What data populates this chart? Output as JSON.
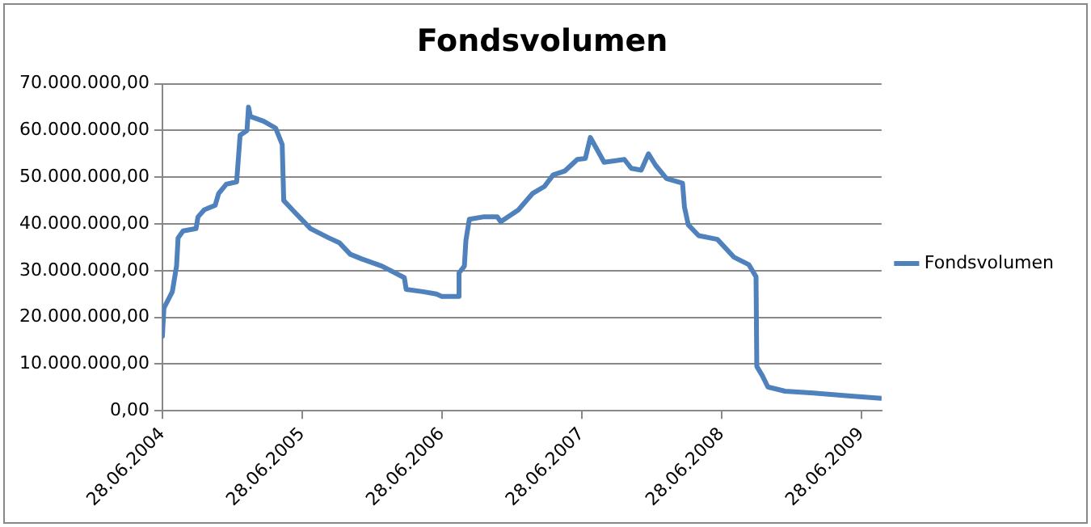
{
  "chart_data": {
    "type": "line",
    "title": "Fondsvolumen",
    "legend": "right",
    "grid": "y",
    "marker": "none",
    "line_style": "solid",
    "xlim": [
      "2004-06-28",
      "2009-08-20"
    ],
    "xticks": [
      {
        "value": "2004-06-28",
        "label": "28.06.2004"
      },
      {
        "value": "2005-06-28",
        "label": "28.06.2005"
      },
      {
        "value": "2006-06-28",
        "label": "28.06.2006"
      },
      {
        "value": "2007-06-28",
        "label": "28.06.2007"
      },
      {
        "value": "2008-06-28",
        "label": "28.06.2008"
      },
      {
        "value": "2009-06-28",
        "label": "28.06.2009"
      }
    ],
    "ylim": [
      0,
      70000000
    ],
    "yticks": [
      {
        "value": 0,
        "label": "0,00"
      },
      {
        "value": 10000000,
        "label": "10.000.000,00"
      },
      {
        "value": 20000000,
        "label": "20.000.000,00"
      },
      {
        "value": 30000000,
        "label": "30.000.000,00"
      },
      {
        "value": 40000000,
        "label": "40.000.000,00"
      },
      {
        "value": 50000000,
        "label": "50.000.000,00"
      },
      {
        "value": 60000000,
        "label": "60.000.000,00"
      },
      {
        "value": 70000000,
        "label": "70.000.000,00"
      }
    ],
    "series": [
      {
        "name": "Fondsvolumen",
        "color": "#4f81bd",
        "x": [
          "2004-06-28",
          "2004-07-02",
          "2004-07-24",
          "2004-08-04",
          "2004-08-08",
          "2004-08-21",
          "2004-09-24",
          "2004-09-29",
          "2004-10-15",
          "2004-11-13",
          "2004-11-22",
          "2004-12-12",
          "2005-01-08",
          "2005-01-17",
          "2005-02-04",
          "2005-02-08",
          "2005-02-13",
          "2005-03-19",
          "2005-04-20",
          "2005-05-07",
          "2005-05-11",
          "2005-06-03",
          "2005-07-20",
          "2005-09-06",
          "2005-10-03",
          "2005-11-01",
          "2005-12-01",
          "2006-01-22",
          "2006-03-22",
          "2006-03-27",
          "2006-05-10",
          "2006-06-14",
          "2006-06-28",
          "2006-08-08",
          "2006-08-12",
          "2006-08-26",
          "2006-08-30",
          "2006-09-08",
          "2006-10-14",
          "2006-11-20",
          "2006-11-29",
          "2007-01-14",
          "2007-02-20",
          "2007-03-23",
          "2007-04-15",
          "2007-05-15",
          "2007-06-17",
          "2007-07-08",
          "2007-07-21",
          "2007-08-05",
          "2007-08-26",
          "2007-10-18",
          "2007-11-05",
          "2007-12-01",
          "2007-12-20",
          "2008-01-08",
          "2008-02-05",
          "2008-03-18",
          "2008-03-23",
          "2008-04-02",
          "2008-04-29",
          "2008-06-17",
          "2008-07-30",
          "2008-09-07",
          "2008-09-26",
          "2008-09-28",
          "2008-10-12",
          "2008-10-27",
          "2008-12-11",
          "2009-02-24",
          "2009-05-25",
          "2009-08-18"
        ],
        "values": [
          16000000,
          22000000,
          25500000,
          31000000,
          37000000,
          38500000,
          39000000,
          41500000,
          43000000,
          44000000,
          46500000,
          48500000,
          49000000,
          59000000,
          60000000,
          65000000,
          63000000,
          62000000,
          60500000,
          57000000,
          45000000,
          43000000,
          39000000,
          37000000,
          36000000,
          33500000,
          32500000,
          31000000,
          28500000,
          26000000,
          25500000,
          25000000,
          24500000,
          24500000,
          29500000,
          31000000,
          36500000,
          41000000,
          41500000,
          41500000,
          40500000,
          43000000,
          46500000,
          48000000,
          50500000,
          51300000,
          53800000,
          54000000,
          58500000,
          56300000,
          53200000,
          53800000,
          51900000,
          51500000,
          55000000,
          52500000,
          49700000,
          48700000,
          43600000,
          39800000,
          37500000,
          36700000,
          32900000,
          31300000,
          28700000,
          9500000,
          7600000,
          5100000,
          4200000,
          3800000,
          3200000,
          2700000
        ]
      }
    ]
  }
}
